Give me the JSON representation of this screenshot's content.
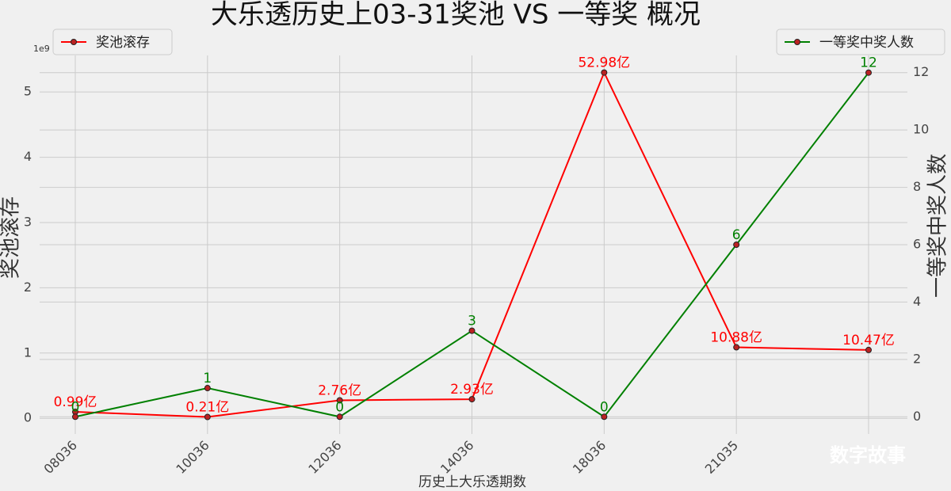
{
  "chart_data": {
    "type": "line",
    "title": "大乐透历史上03-31奖池 VS 一等奖 概况",
    "x_label": "历史上大乐透期数",
    "y_label": "奖池滚存",
    "y2_label": "一等奖中奖人数",
    "y_offset_text": "1e9",
    "watermark": "数字故事",
    "categories": [
      "08036",
      "10036",
      "12036",
      "14036",
      "18036",
      "21035",
      null
    ],
    "series": [
      {
        "name": "奖池滚存",
        "color": "#ff0000",
        "axis": "y",
        "legend": "upper left",
        "values": [
          0.099,
          0.021,
          0.276,
          0.293,
          5.298,
          1.088,
          1.047
        ],
        "value_labels": [
          "0.99亿",
          "0.21亿",
          "2.76亿",
          "2.93亿",
          "52.98亿",
          "10.88亿",
          "10.47亿"
        ]
      },
      {
        "name": "一等奖中奖人数",
        "color": "#008000",
        "axis": "y2",
        "legend": "upper right",
        "values": [
          0,
          1,
          0,
          3,
          0,
          6,
          12
        ]
      }
    ],
    "ylim": [
      -0.24,
      5.56
    ],
    "yticks": [
      0,
      1,
      2,
      3,
      4,
      5
    ],
    "y2lim": [
      -0.6,
      12.6
    ],
    "y2ticks": [
      0,
      2,
      4,
      6,
      8,
      10,
      12
    ],
    "grid": true
  }
}
